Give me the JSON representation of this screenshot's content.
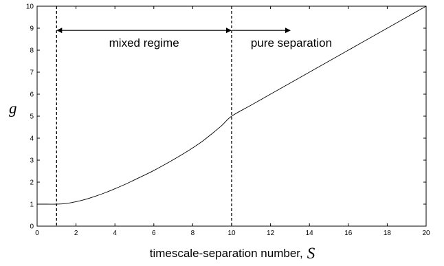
{
  "chart_data": {
    "type": "line",
    "title": "",
    "xlabel_text": "timescale-separation number,",
    "xlabel_symbol": "S",
    "ylabel": "g",
    "xlim": [
      0,
      20
    ],
    "ylim": [
      0,
      10
    ],
    "xticks": [
      "0",
      "2",
      "4",
      "6",
      "8",
      "10",
      "12",
      "14",
      "16",
      "18",
      "20"
    ],
    "yticks": [
      "0",
      "1",
      "2",
      "3",
      "4",
      "5",
      "6",
      "7",
      "8",
      "9",
      "10"
    ],
    "grid": false,
    "series": [
      {
        "x": [
          0,
          0.5,
          1,
          1.5,
          2,
          2.5,
          3,
          3.5,
          4,
          4.5,
          5,
          5.5,
          6,
          6.5,
          7,
          7.5,
          8,
          8.5,
          9,
          9.5,
          10,
          11,
          12,
          13,
          14,
          15,
          16,
          17,
          18,
          19,
          20
        ],
        "y": [
          1,
          1,
          1,
          1.03,
          1.11,
          1.22,
          1.36,
          1.52,
          1.7,
          1.89,
          2.1,
          2.31,
          2.53,
          2.77,
          3.02,
          3.28,
          3.56,
          3.86,
          4.21,
          4.58,
          5.0,
          5.5,
          6.0,
          6.5,
          7.0,
          7.5,
          8.0,
          8.5,
          9.0,
          9.5,
          10.0
        ]
      }
    ],
    "vlines": [
      1,
      10
    ],
    "annotations": {
      "mixed": {
        "text": "mixed regime",
        "from": 1,
        "to": 10,
        "y": 8.9
      },
      "pure": {
        "text": "pure separation",
        "from": 10,
        "to": 13,
        "y": 8.9
      }
    }
  }
}
